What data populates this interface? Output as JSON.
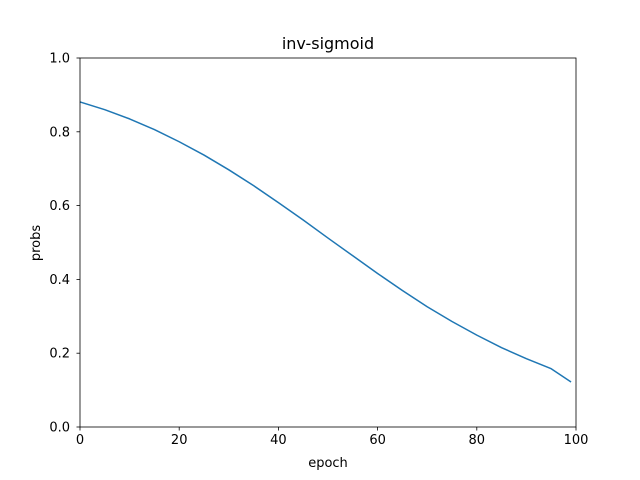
{
  "chart_data": {
    "type": "line",
    "title": "inv-sigmoid",
    "xlabel": "epoch",
    "ylabel": "probs",
    "xlim": [
      0,
      100
    ],
    "ylim": [
      0.0,
      1.0
    ],
    "xticks": [
      0,
      20,
      40,
      60,
      80,
      100
    ],
    "xtick_labels": [
      "0",
      "20",
      "40",
      "60",
      "80",
      "100"
    ],
    "yticks": [
      0.0,
      0.2,
      0.4,
      0.6,
      0.8,
      1.0
    ],
    "ytick_labels": [
      "0.0",
      "0.2",
      "0.4",
      "0.6",
      "0.8",
      "1.0"
    ],
    "grid": false,
    "series": [
      {
        "color": "#1f77b4",
        "x": [
          0,
          5,
          10,
          15,
          20,
          25,
          30,
          35,
          40,
          45,
          50,
          55,
          60,
          65,
          70,
          75,
          80,
          85,
          90,
          95,
          99
        ],
        "y": [
          0.881,
          0.86,
          0.835,
          0.806,
          0.773,
          0.737,
          0.697,
          0.654,
          0.608,
          0.561,
          0.512,
          0.464,
          0.416,
          0.37,
          0.326,
          0.286,
          0.249,
          0.215,
          0.185,
          0.158,
          0.122
        ]
      }
    ]
  }
}
